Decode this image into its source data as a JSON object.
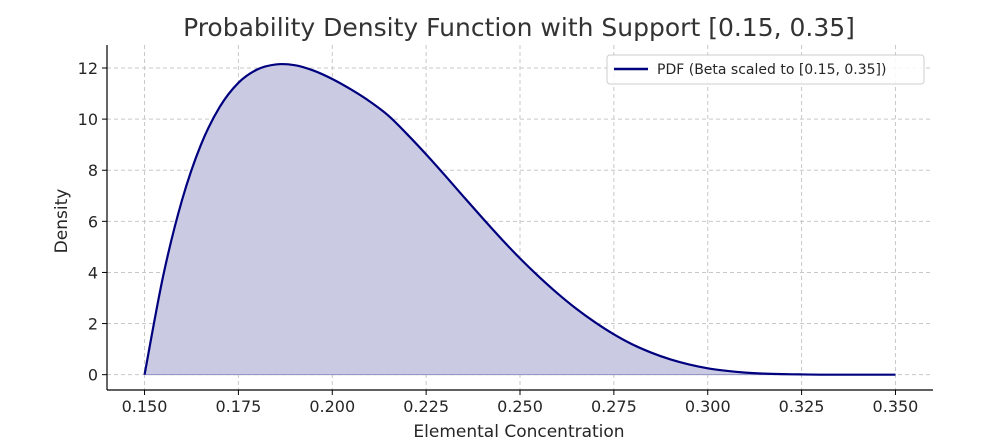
{
  "chart_data": {
    "type": "area",
    "title": "Probability Density Function with Support [0.15, 0.35]",
    "xlabel": "Elemental Concentration",
    "ylabel": "Density",
    "xlim": [
      0.14,
      0.36
    ],
    "ylim": [
      -0.6,
      12.9
    ],
    "x_ticks": [
      0.15,
      0.175,
      0.2,
      0.225,
      0.25,
      0.275,
      0.3,
      0.325,
      0.35
    ],
    "x_tick_labels": [
      "0.150",
      "0.175",
      "0.200",
      "0.225",
      "0.250",
      "0.275",
      "0.300",
      "0.325",
      "0.350"
    ],
    "y_ticks": [
      0,
      2,
      4,
      6,
      8,
      10,
      12
    ],
    "y_tick_labels": [
      "0",
      "2",
      "4",
      "6",
      "8",
      "10",
      "12"
    ],
    "grid": true,
    "legend_position": "top-right",
    "series": [
      {
        "name": "PDF (Beta scaled to [0.15, 0.35])",
        "color": "#00007f",
        "fill_color": "#cacbe3",
        "x": [
          0.15,
          0.155,
          0.16,
          0.165,
          0.17,
          0.175,
          0.18,
          0.185,
          0.19,
          0.195,
          0.2,
          0.205,
          0.21,
          0.215,
          0.22,
          0.225,
          0.23,
          0.235,
          0.24,
          0.245,
          0.25,
          0.255,
          0.26,
          0.265,
          0.27,
          0.275,
          0.28,
          0.285,
          0.29,
          0.295,
          0.3,
          0.305,
          0.31,
          0.315,
          0.32,
          0.325,
          0.33,
          0.335,
          0.34,
          0.345,
          0.35
        ],
        "y": [
          0,
          3.89,
          6.84,
          8.99,
          10.47,
          11.42,
          11.94,
          12.14,
          12.11,
          11.9,
          11.57,
          11.16,
          10.69,
          10.13,
          9.4,
          8.62,
          7.8,
          6.96,
          6.13,
          5.32,
          4.55,
          3.84,
          3.18,
          2.58,
          2.05,
          1.58,
          1.18,
          0.86,
          0.6,
          0.4,
          0.25,
          0.15,
          0.08,
          0.04,
          0.02,
          0.01,
          0,
          0,
          0,
          0,
          0
        ]
      }
    ]
  }
}
